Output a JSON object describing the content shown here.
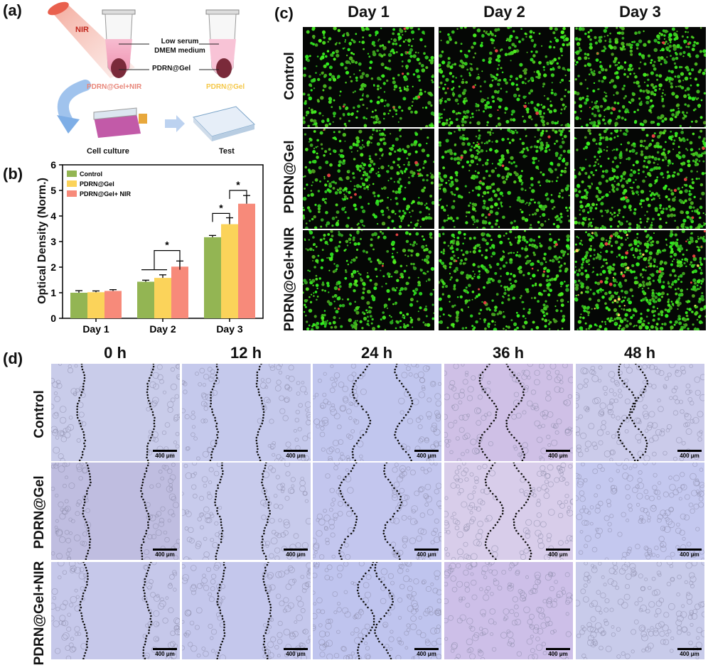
{
  "panels": {
    "a": "(a)",
    "b": "(b)",
    "c": "(c)",
    "d": "(d)"
  },
  "panel_a": {
    "nir": "NIR",
    "medium": "Low serum\nDMEM medium",
    "gel": "PDRN@Gel",
    "left_caption": "PDRN@Gel+NIR",
    "right_caption": "PDRN@Gel",
    "culture": "Cell culture",
    "test": "Test",
    "colors": {
      "red_caption": "#e8877a",
      "yellow_caption": "#f5c84a",
      "tube_pink": "#f3a8c0",
      "gel_dark": "#7a2a3a",
      "arrow_blue": "#7eaee6"
    }
  },
  "chart_data": {
    "type": "bar",
    "categories": [
      "Day 1",
      "Day 2",
      "Day 3"
    ],
    "series": [
      {
        "name": "Control",
        "values": [
          1.0,
          1.43,
          3.17
        ],
        "errors": [
          0.08,
          0.06,
          0.07
        ],
        "color": "#93b553"
      },
      {
        "name": "PDRN@Gel",
        "values": [
          1.02,
          1.58,
          3.68
        ],
        "errors": [
          0.05,
          0.12,
          0.25
        ],
        "color": "#fbd35a"
      },
      {
        "name": "PDRN@Gel+ NIR",
        "values": [
          1.07,
          2.02,
          4.48
        ],
        "errors": [
          0.05,
          0.22,
          0.32
        ],
        "color": "#f78a7a"
      }
    ],
    "ylabel": "Optical Density (Norm.)",
    "xlabel": "",
    "ylim": [
      0,
      6
    ],
    "yticks": [
      "0",
      "1",
      "2",
      "3",
      "4",
      "5",
      "6"
    ],
    "legend_position": "top-left",
    "significance": "*"
  },
  "panel_c": {
    "columns": [
      "Day 1",
      "Day 2",
      "Day 3"
    ],
    "rows": [
      "Control",
      "PDRN@Gel",
      "PDRN@Gel+NIR"
    ]
  },
  "panel_d": {
    "columns": [
      "0 h",
      "12 h",
      "24 h",
      "36 h",
      "48 h"
    ],
    "rows": [
      "Control",
      "PDRN@Gel",
      "PDRN@Gel+NIR"
    ],
    "scale": "400 μm"
  }
}
